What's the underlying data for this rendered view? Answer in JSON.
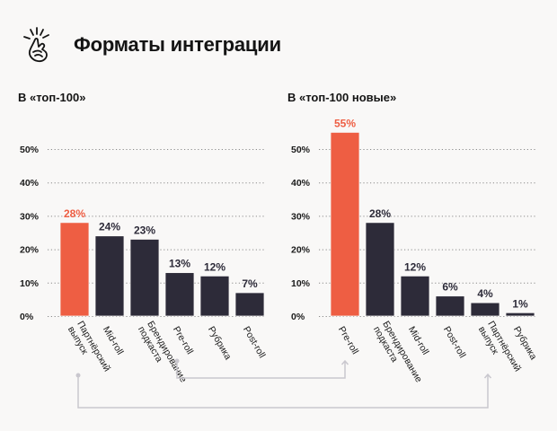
{
  "header": {
    "title": "Форматы интеграции",
    "icon": "snapping-fingers-icon"
  },
  "colors": {
    "highlight": "#ee5e43",
    "bar": "#2d2b39",
    "background": "#f9f8f7",
    "connector": "#c9c7ce"
  },
  "chart_data": [
    {
      "type": "bar",
      "title": "В «топ-100»",
      "xlabel": "",
      "ylabel": "",
      "ylim": [
        0,
        50
      ],
      "yticks": [
        "0%",
        "10%",
        "20%",
        "30%",
        "40%",
        "50%"
      ],
      "ytick_values": [
        0,
        10,
        20,
        30,
        40,
        50
      ],
      "grid": true,
      "categories": [
        [
          "Партнёрский",
          "выпуск"
        ],
        [
          "Mid-roll"
        ],
        [
          "Брендирование",
          "подкаста"
        ],
        [
          "Pre-roll"
        ],
        [
          "Рубрика"
        ],
        [
          "Post-roll"
        ]
      ],
      "values": [
        28,
        24,
        23,
        13,
        12,
        7
      ],
      "value_labels": [
        "28%",
        "24%",
        "23%",
        "13%",
        "12%",
        "7%"
      ],
      "highlight_index": 0
    },
    {
      "type": "bar",
      "title": "В «топ-100 новые»",
      "xlabel": "",
      "ylabel": "",
      "ylim": [
        0,
        50
      ],
      "yticks": [
        "0%",
        "10%",
        "20%",
        "30%",
        "40%",
        "50%"
      ],
      "ytick_values": [
        0,
        10,
        20,
        30,
        40,
        50
      ],
      "grid": true,
      "categories": [
        [
          "Pre-roll"
        ],
        [
          "Брендирование",
          "подкаста"
        ],
        [
          "Mid-roll"
        ],
        [
          "Post-roll"
        ],
        [
          "Партнёрский",
          "выпуск"
        ],
        [
          "Рубрика"
        ]
      ],
      "values": [
        55,
        28,
        12,
        6,
        4,
        1
      ],
      "value_labels": [
        "55%",
        "28%",
        "12%",
        "6%",
        "4%",
        "1%"
      ],
      "highlight_index": 0
    }
  ],
  "connectors": [
    {
      "from_chart": 0,
      "from_category": 0,
      "to_chart": 1,
      "to_category": 4,
      "meaning": "Партнёрский выпуск"
    },
    {
      "from_chart": 0,
      "from_category": 3,
      "to_chart": 1,
      "to_category": 0,
      "meaning": "Pre-roll"
    }
  ]
}
